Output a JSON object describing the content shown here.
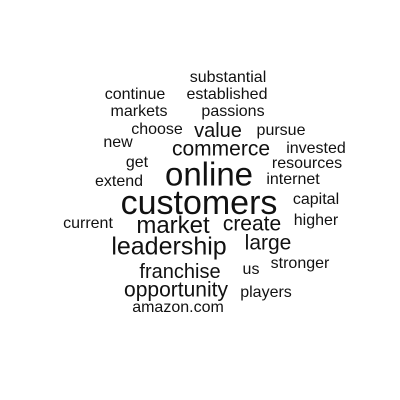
{
  "wordcloud": {
    "words": [
      {
        "text": "substantial"
      },
      {
        "text": "continue"
      },
      {
        "text": "established"
      },
      {
        "text": "markets"
      },
      {
        "text": "passions"
      },
      {
        "text": "choose"
      },
      {
        "text": "value"
      },
      {
        "text": "pursue"
      },
      {
        "text": "new"
      },
      {
        "text": "commerce"
      },
      {
        "text": "invested"
      },
      {
        "text": "get"
      },
      {
        "text": "resources"
      },
      {
        "text": "online"
      },
      {
        "text": "extend"
      },
      {
        "text": "internet"
      },
      {
        "text": "customers"
      },
      {
        "text": "capital"
      },
      {
        "text": "current"
      },
      {
        "text": "market"
      },
      {
        "text": "create"
      },
      {
        "text": "higher"
      },
      {
        "text": "leadership"
      },
      {
        "text": "large"
      },
      {
        "text": "stronger"
      },
      {
        "text": "franchise"
      },
      {
        "text": "us"
      },
      {
        "text": "opportunity"
      },
      {
        "text": "players"
      },
      {
        "text": "amazon.com"
      }
    ],
    "colors": {
      "text": "#111111",
      "background": "#ffffff"
    }
  }
}
